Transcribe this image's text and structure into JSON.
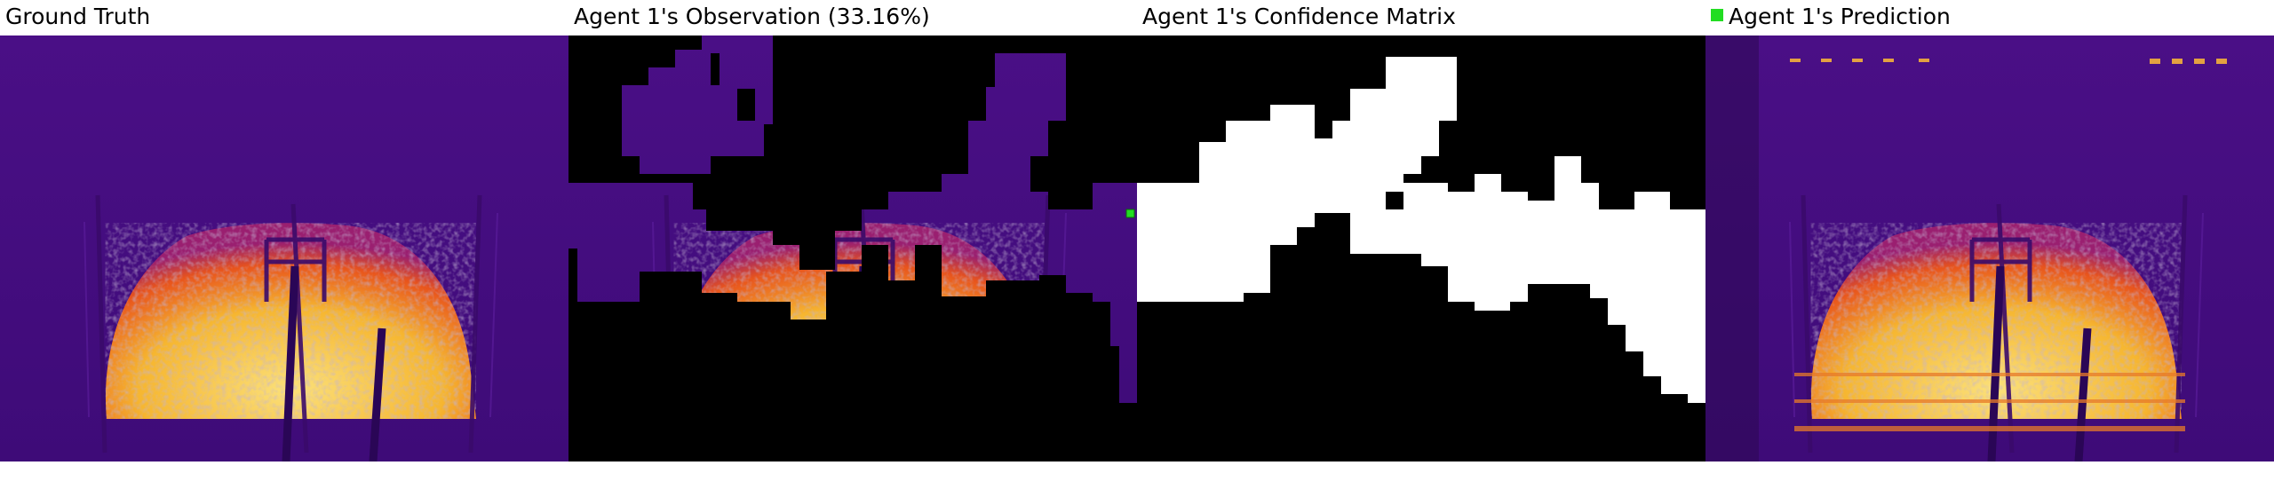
{
  "panels": {
    "ground_truth": {
      "title": "Ground Truth"
    },
    "observation": {
      "title": "Agent 1's Observation (33.16%)"
    },
    "confidence": {
      "title": "Agent 1's Confidence Matrix"
    },
    "prediction": {
      "title": "Agent 1's Prediction"
    }
  },
  "colors": {
    "background_purple": "#4b0f8a",
    "glow_orange": "#e8541c",
    "glow_yellow": "#f8c83a",
    "glow_light": "#f6ecc8",
    "mask_black": "#000000",
    "mask_white": "#ffffff",
    "agent_marker": "#22dd22"
  }
}
